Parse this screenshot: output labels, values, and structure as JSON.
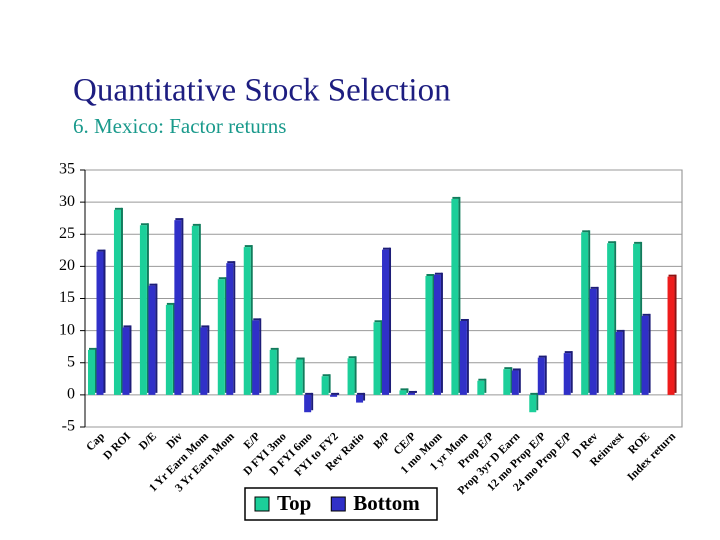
{
  "chart_data": {
    "type": "bar",
    "title": "Quantitative Stock Selection",
    "subtitle": "6. Mexico: Factor returns",
    "categories": [
      "Cap",
      "D ROI",
      "D/E",
      "Div",
      "1 Yr Earn Mom",
      "3 Yr Earn Mom",
      "E/P",
      "D FYI 3mo",
      "D FYI 6mo",
      "FYI to FY2",
      "Rev Ratio",
      "B/P",
      "CE/P",
      "1 mo Mom",
      "1 yr Mom",
      "Prop E/P",
      "Prop 3yr D Earn",
      "12 mo Prop E/P",
      "24 mo Prop E/P",
      "D Rev",
      "Reinvest",
      "ROE",
      "Index return"
    ],
    "series": [
      {
        "name": "Top",
        "color": "#1ccf9a",
        "values": [
          7,
          28.8,
          26.4,
          14,
          26.3,
          18,
          23,
          7,
          5.5,
          2.9,
          5.7,
          11.3,
          0.7,
          18.5,
          30.5,
          2.2,
          4,
          -2.7,
          null,
          25.3,
          23.6,
          23.5,
          null
        ]
      },
      {
        "name": "Bottom",
        "color": "#3030c8",
        "values": [
          22.3,
          10.5,
          17,
          27.2,
          10.5,
          20.5,
          11.6,
          null,
          -2.7,
          -0.3,
          -1.2,
          22.6,
          0.3,
          18.7,
          11.5,
          null,
          3.8,
          5.8,
          6.5,
          16.5,
          9.8,
          12.3,
          18.4
        ]
      }
    ],
    "highlight": {
      "series": 1,
      "index": 22,
      "color": "#ee1c1c"
    },
    "ylim": [
      -5,
      35
    ],
    "yticks": [
      -5,
      0,
      5,
      10,
      15,
      20,
      25,
      30,
      35
    ],
    "grid": true,
    "legend": "bottom"
  }
}
